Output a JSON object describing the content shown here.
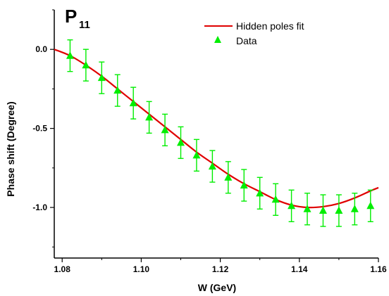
{
  "chart_data": {
    "type": "scatter",
    "panel_label": "P",
    "panel_label_subscript": "11",
    "xlabel": "W (GeV)",
    "ylabel": "Phase shift (Degree)",
    "xlim": [
      1.078,
      1.16
    ],
    "ylim": [
      -1.32,
      0.25
    ],
    "xticks": [
      1.08,
      1.1,
      1.12,
      1.14,
      1.16
    ],
    "xtick_labels": [
      "1.08",
      "1.10",
      "1.12",
      "1.14",
      "1.16"
    ],
    "yticks": [
      0.0,
      -0.5,
      -1.0
    ],
    "ytick_labels": [
      "0.0",
      "-0.5",
      "-1.0"
    ],
    "grid": false,
    "legend_position": "top-right",
    "series": [
      {
        "name": "Hidden poles fit",
        "kind": "line",
        "color": "#e00000",
        "x": [
          1.078,
          1.082,
          1.086,
          1.09,
          1.094,
          1.098,
          1.102,
          1.106,
          1.11,
          1.114,
          1.118,
          1.122,
          1.126,
          1.13,
          1.134,
          1.138,
          1.142,
          1.146,
          1.15,
          1.154,
          1.158,
          1.16
        ],
        "y": [
          0.0,
          -0.04,
          -0.1,
          -0.17,
          -0.25,
          -0.33,
          -0.41,
          -0.49,
          -0.57,
          -0.65,
          -0.72,
          -0.79,
          -0.85,
          -0.9,
          -0.95,
          -0.985,
          -1.0,
          -0.995,
          -0.975,
          -0.94,
          -0.895,
          -0.875
        ]
      },
      {
        "name": "Data",
        "kind": "scatter",
        "marker": "triangle",
        "color": "#00ee00",
        "x": [
          1.082,
          1.086,
          1.09,
          1.094,
          1.098,
          1.102,
          1.106,
          1.11,
          1.114,
          1.118,
          1.122,
          1.126,
          1.13,
          1.134,
          1.138,
          1.142,
          1.146,
          1.15,
          1.154,
          1.158
        ],
        "y": [
          -0.04,
          -0.1,
          -0.18,
          -0.26,
          -0.34,
          -0.43,
          -0.51,
          -0.59,
          -0.67,
          -0.74,
          -0.81,
          -0.86,
          -0.91,
          -0.95,
          -0.99,
          -1.01,
          -1.02,
          -1.02,
          -1.01,
          -0.99
        ],
        "error": [
          0.1,
          0.1,
          0.1,
          0.1,
          0.1,
          0.1,
          0.1,
          0.1,
          0.1,
          0.1,
          0.1,
          0.1,
          0.1,
          0.1,
          0.1,
          0.1,
          0.1,
          0.1,
          0.1,
          0.1
        ]
      }
    ]
  }
}
